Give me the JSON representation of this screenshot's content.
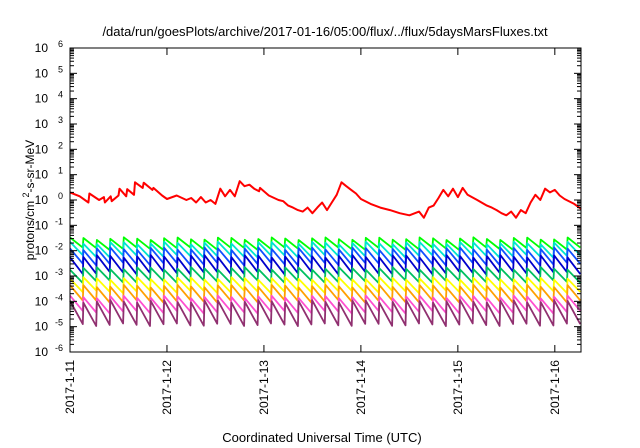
{
  "chart_data": {
    "type": "line",
    "title": "/data/run/goesPlots/archive/2017-01-16/05:00/flux/../flux/5daysMarsFluxes.txt",
    "xlabel": "Coordinated Universal Time (UTC)",
    "ylabel": "protons/cm²-s-sr-MeV",
    "y_scale": "log",
    "ylim": [
      1e-06,
      1000000.0
    ],
    "xlim": [
      0,
      5.27
    ],
    "x_unit": "days since 2017-1-11",
    "y_ticks": [
      {
        "base": "10",
        "exp": "-6",
        "value": 1e-06
      },
      {
        "base": "10",
        "exp": "-5",
        "value": 1e-05
      },
      {
        "base": "10",
        "exp": "-4",
        "value": 0.0001
      },
      {
        "base": "10",
        "exp": "-3",
        "value": 0.001
      },
      {
        "base": "10",
        "exp": "-2",
        "value": 0.01
      },
      {
        "base": "10",
        "exp": "-1",
        "value": 0.1
      },
      {
        "base": "10",
        "exp": "0",
        "value": 1
      },
      {
        "base": "10",
        "exp": "1",
        "value": 10.0
      },
      {
        "base": "10",
        "exp": "2",
        "value": 100.0
      },
      {
        "base": "10",
        "exp": "3",
        "value": 1000.0
      },
      {
        "base": "10",
        "exp": "4",
        "value": 10000.0
      },
      {
        "base": "10",
        "exp": "5",
        "value": 100000.0
      },
      {
        "base": "10",
        "exp": "6",
        "value": 1000000.0
      }
    ],
    "x_ticks": [
      {
        "label": "2017-1-11",
        "value": 0
      },
      {
        "label": "2017-1-12",
        "value": 1
      },
      {
        "label": "2017-1-13",
        "value": 2
      },
      {
        "label": "2017-1-14",
        "value": 3
      },
      {
        "label": "2017-1-15",
        "value": 4
      },
      {
        "label": "2017-1-16",
        "value": 5
      }
    ],
    "grid": false,
    "legend": "none",
    "series": [
      {
        "color": "#ff0000",
        "x": [
          0,
          0.1,
          0.19,
          0.2,
          0.3,
          0.35,
          0.36,
          0.42,
          0.43,
          0.5,
          0.51,
          0.58,
          0.59,
          0.66,
          0.67,
          0.75,
          0.76,
          0.85,
          0.86,
          0.95,
          1.0,
          1.1,
          1.2,
          1.25,
          1.3,
          1.35,
          1.4,
          1.45,
          1.5,
          1.55,
          1.6,
          1.65,
          1.7,
          1.75,
          1.8,
          1.85,
          1.9,
          1.95,
          1.96,
          2.05,
          2.15,
          2.2,
          2.25,
          2.3,
          2.35,
          2.4,
          2.45,
          2.5,
          2.55,
          2.6,
          2.65,
          2.7,
          2.75,
          2.8,
          2.85,
          2.9,
          2.95,
          3.0,
          3.1,
          3.2,
          3.3,
          3.4,
          3.5,
          3.6,
          3.65,
          3.7,
          3.75,
          3.8,
          3.85,
          3.9,
          3.95,
          4.0,
          4.05,
          4.1,
          4.2,
          4.3,
          4.35,
          4.4,
          4.45,
          4.5,
          4.55,
          4.6,
          4.65,
          4.7,
          4.75,
          4.8,
          4.85,
          4.9,
          4.95,
          5.0,
          5.05,
          5.1,
          5.2,
          5.27
        ],
        "values": [
          2.0,
          1.4,
          0.8,
          1.8,
          1.0,
          1.3,
          0.8,
          1.4,
          0.9,
          1.5,
          2.8,
          1.4,
          2.7,
          1.6,
          5.0,
          3.0,
          4.8,
          2.5,
          3.0,
          1.5,
          1.1,
          1.5,
          1.0,
          1.2,
          0.8,
          1.3,
          0.8,
          1.0,
          0.7,
          2.8,
          1.4,
          2.5,
          1.4,
          5.5,
          3.5,
          4.0,
          2.8,
          2.2,
          3.0,
          1.5,
          1.0,
          0.9,
          0.6,
          0.5,
          0.4,
          0.35,
          0.5,
          0.3,
          0.5,
          0.8,
          0.4,
          0.8,
          1.6,
          5.0,
          3.5,
          2.5,
          1.8,
          1.1,
          0.7,
          0.5,
          0.4,
          0.3,
          0.25,
          0.35,
          0.2,
          0.5,
          0.6,
          1.2,
          2.5,
          1.4,
          2.8,
          1.3,
          3.0,
          1.6,
          1.0,
          0.6,
          0.5,
          0.4,
          0.3,
          0.25,
          0.35,
          0.2,
          0.4,
          0.3,
          0.8,
          1.6,
          1.0,
          2.8,
          2.0,
          2.5,
          1.5,
          1.1,
          0.7,
          0.45
        ]
      },
      {
        "color": "#00ff00",
        "peak": 0.03,
        "drop": 0.4,
        "teeth": 38
      },
      {
        "color": "#00e5d0",
        "peak": 0.02,
        "drop": 0.3,
        "teeth": 38
      },
      {
        "color": "#1050ff",
        "peak": 0.012,
        "drop": 0.25,
        "teeth": 38
      },
      {
        "color": "#0000cc",
        "peak": 0.006,
        "drop": 0.22,
        "teeth": 38
      },
      {
        "color": "#00c060",
        "peak": 0.002,
        "drop": 0.3,
        "teeth": 38
      },
      {
        "color": "#ffff00",
        "peak": 0.0008,
        "drop": 0.3,
        "teeth": 38
      },
      {
        "color": "#ffa000",
        "peak": 0.0004,
        "drop": 0.25,
        "teeth": 38
      },
      {
        "color": "#ff4fd0",
        "peak": 0.00015,
        "drop": 0.25,
        "teeth": 38
      },
      {
        "color": "#903070",
        "peak": 0.0001,
        "drop": 0.12,
        "teeth": 38
      }
    ]
  }
}
